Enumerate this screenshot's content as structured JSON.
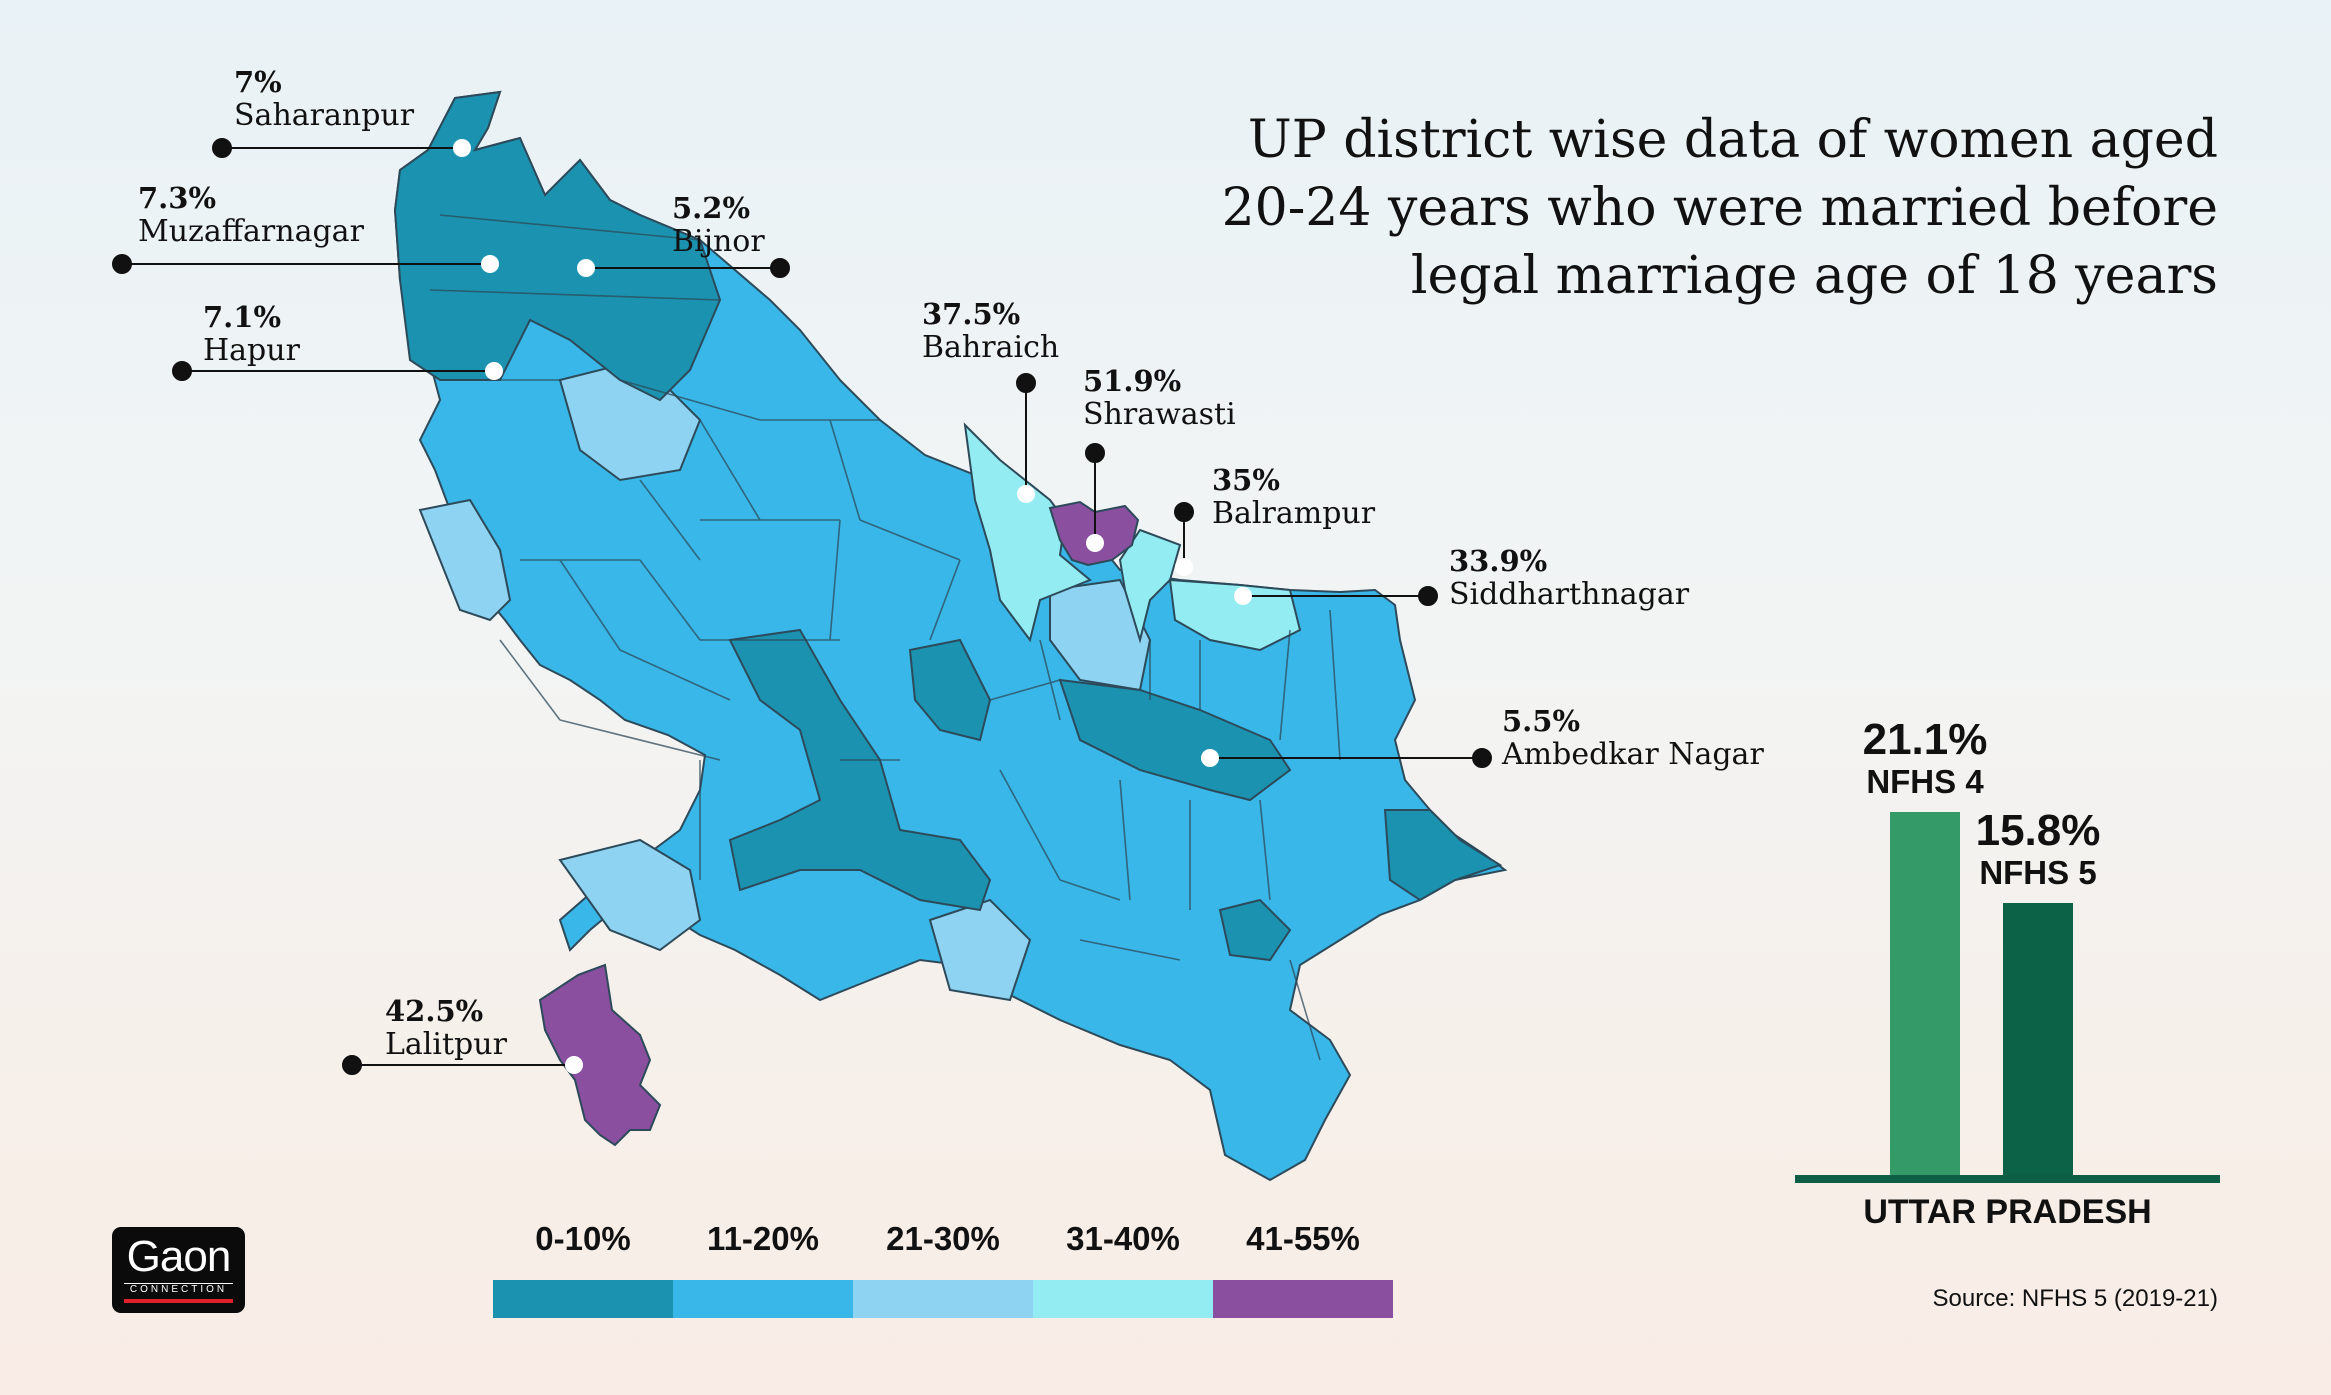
{
  "title_lines": [
    "UP district wise data of women aged",
    "20-24 years who were married before",
    "legal marriage age of 18 years"
  ],
  "colors": {
    "0-10": "#1b93b0",
    "11-20": "#38b7e8",
    "21-30": "#8fd3f2",
    "31-40": "#93ecf1",
    "41-55": "#8a4f9e",
    "nfhs4_bar": "#349a67",
    "nfhs5_bar": "#0c6246"
  },
  "districts": [
    {
      "name": "Saharanpur",
      "value": "7%"
    },
    {
      "name": "Muzaffarnagar",
      "value": "7.3%"
    },
    {
      "name": "Bijnor",
      "value": "5.2%"
    },
    {
      "name": "Hapur",
      "value": "7.1%"
    },
    {
      "name": "Bahraich",
      "value": "37.5%"
    },
    {
      "name": "Shrawasti",
      "value": "51.9%"
    },
    {
      "name": "Balrampur",
      "value": "35%"
    },
    {
      "name": "Siddharthnagar",
      "value": "33.9%"
    },
    {
      "name": "Ambedkar Nagar",
      "value": "5.5%"
    },
    {
      "name": "Lalitpur",
      "value": "42.5%"
    }
  ],
  "legend": [
    "0-10%",
    "11-20%",
    "21-30%",
    "31-40%",
    "41-55%"
  ],
  "chart_data": {
    "type": "bar",
    "categories": [
      "NFHS 4",
      "NFHS 5"
    ],
    "values": [
      21.1,
      15.8
    ],
    "value_labels": [
      "21.1%",
      "15.8%"
    ],
    "xlabel": "UTTAR PRADESH",
    "ylim": [
      0,
      25
    ]
  },
  "source": "Source: NFHS 5 (2019-21)",
  "logo": {
    "line1": "Gaon",
    "line2": "CONNECTION"
  }
}
